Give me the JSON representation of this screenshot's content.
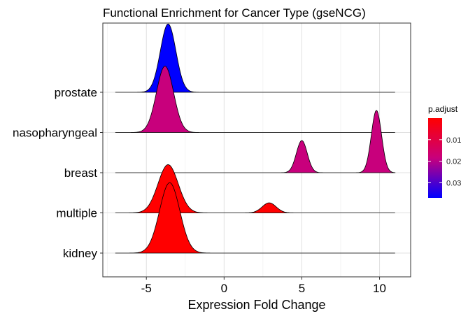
{
  "chart_data": {
    "type": "ridgeline",
    "title": "Functional Enrichment for Cancer Type (gseNCG)",
    "xlabel": "Expression Fold Change",
    "ylabel": "",
    "xlim": [
      -7.8,
      12
    ],
    "x_ticks": [
      -5,
      0,
      5,
      10
    ],
    "x_tick_labels": [
      "-5",
      "0",
      "5",
      "10"
    ],
    "grid": true,
    "categories": [
      "kidney",
      "multiple",
      "breast",
      "nasopharyngeal",
      "prostate"
    ],
    "series": [
      {
        "category": "kidney",
        "p_adjust": 0.0005,
        "color": "#FF0000",
        "x_range": [
          -7,
          11
        ],
        "peaks": [
          {
            "mean": -3.5,
            "sd": 0.65,
            "height": 1.75
          }
        ]
      },
      {
        "category": "multiple",
        "p_adjust": 0.0005,
        "color": "#FF0000",
        "x_range": [
          -7,
          11
        ],
        "peaks": [
          {
            "mean": -3.6,
            "sd": 0.65,
            "height": 1.2
          },
          {
            "mean": 2.9,
            "sd": 0.45,
            "height": 0.25
          }
        ]
      },
      {
        "category": "breast",
        "p_adjust": 0.018,
        "color": "#C8007C",
        "x_range": [
          -7,
          11
        ],
        "peaks": [
          {
            "mean": 5.0,
            "sd": 0.35,
            "height": 0.8
          },
          {
            "mean": 9.8,
            "sd": 0.33,
            "height": 1.55
          }
        ]
      },
      {
        "category": "nasopharyngeal",
        "p_adjust": 0.018,
        "color": "#C8007C",
        "x_range": [
          -7,
          11
        ],
        "peaks": [
          {
            "mean": -3.8,
            "sd": 0.55,
            "height": 1.65
          }
        ]
      },
      {
        "category": "prostate",
        "p_adjust": 0.034,
        "color": "#0000FF",
        "x_range": [
          -7,
          11
        ],
        "peaks": [
          {
            "mean": -3.6,
            "sd": 0.5,
            "height": 1.7
          }
        ]
      }
    ],
    "legend": {
      "title": "p.adjust",
      "position": "right",
      "type": "colorbar",
      "labels": [
        "0.01",
        "0.02",
        "0.03"
      ],
      "values": [
        0.01,
        0.02,
        0.03
      ],
      "range": [
        0.0,
        0.037
      ],
      "low_color": "#FF0000",
      "high_color": "#0000FF"
    }
  }
}
